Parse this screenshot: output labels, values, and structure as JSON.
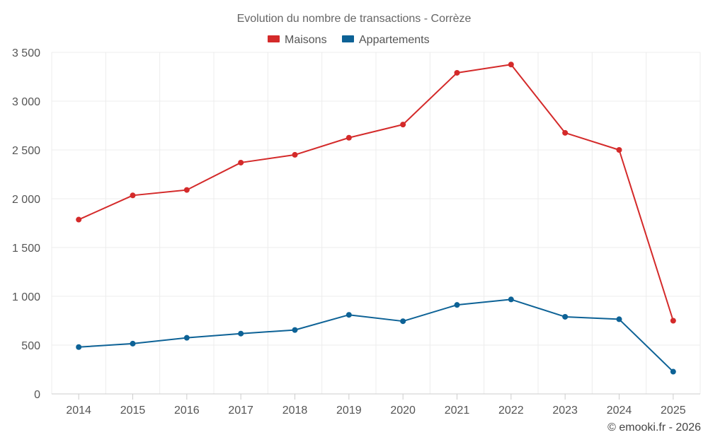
{
  "chart_data": {
    "type": "line",
    "title": "Evolution du nombre de transactions - Corrèze",
    "categories": [
      "2014",
      "2015",
      "2016",
      "2017",
      "2018",
      "2019",
      "2020",
      "2021",
      "2022",
      "2023",
      "2024",
      "2025"
    ],
    "series": [
      {
        "name": "Maisons",
        "color": "#d42a2a",
        "values": [
          1786,
          2034,
          2090,
          2370,
          2450,
          2625,
          2760,
          3290,
          3375,
          2675,
          2500,
          750
        ]
      },
      {
        "name": "Appartements",
        "color": "#0d6296",
        "values": [
          480,
          515,
          575,
          618,
          655,
          810,
          745,
          912,
          968,
          790,
          765,
          228
        ]
      }
    ],
    "ylim": [
      0,
      3500
    ],
    "yticks": [
      0,
      500,
      1000,
      1500,
      2000,
      2500,
      3000,
      3500
    ],
    "ytick_labels": [
      "0",
      "500",
      "1 000",
      "1 500",
      "2 000",
      "2 500",
      "3 000",
      "3 500"
    ],
    "xlabel": "",
    "ylabel": "",
    "grid": true,
    "legend_position": "top-center"
  },
  "credit": "© emooki.fr - 2026"
}
